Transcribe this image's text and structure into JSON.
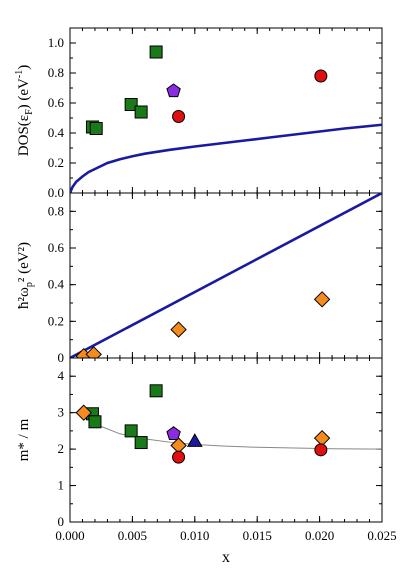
{
  "chart_data": [
    {
      "type": "scatter",
      "panel": "top",
      "ylabel_main": "DOS(ε",
      "ylabel_sub": "F",
      "ylabel_tail": ")",
      "ylabel_unit": "(eV",
      "ylabel_unit_sup": "-1",
      "ylabel_unit_tail": ")",
      "xlim": [
        0,
        0.025
      ],
      "ylim": [
        0,
        1.1
      ],
      "yticks": [
        "0.0",
        "0.2",
        "0.4",
        "0.6",
        "0.8",
        "1.0"
      ],
      "line": {
        "color": "#1a1aa0",
        "points": [
          [
            0,
            0
          ],
          [
            0.0002,
            0.04
          ],
          [
            0.0005,
            0.075
          ],
          [
            0.001,
            0.11
          ],
          [
            0.0015,
            0.14
          ],
          [
            0.002,
            0.16
          ],
          [
            0.003,
            0.2
          ],
          [
            0.004,
            0.225
          ],
          [
            0.005,
            0.245
          ],
          [
            0.006,
            0.262
          ],
          [
            0.008,
            0.288
          ],
          [
            0.01,
            0.31
          ],
          [
            0.012,
            0.33
          ],
          [
            0.014,
            0.35
          ],
          [
            0.016,
            0.37
          ],
          [
            0.018,
            0.39
          ],
          [
            0.02,
            0.41
          ],
          [
            0.022,
            0.43
          ],
          [
            0.025,
            0.455
          ]
        ]
      },
      "series": [
        {
          "marker": "square",
          "color": "#1a7a1a",
          "x": [
            0.0018,
            0.0021,
            0.0049,
            0.0057,
            0.0069
          ],
          "y": [
            0.44,
            0.43,
            0.59,
            0.54,
            0.94
          ]
        },
        {
          "marker": "pentagon",
          "color": "#8a2be2",
          "x": [
            0.0083
          ],
          "y": [
            0.68
          ]
        },
        {
          "marker": "circle",
          "color": "#e01010",
          "x": [
            0.0087,
            0.0201
          ],
          "y": [
            0.51,
            0.78
          ]
        }
      ]
    },
    {
      "type": "scatter",
      "panel": "middle",
      "ylabel": "ħ²ω",
      "ylabel_sub": "p",
      "ylabel_tail": "² (eV²)",
      "xlim": [
        0,
        0.025
      ],
      "ylim": [
        0,
        0.9
      ],
      "yticks": [
        "0",
        "0.2",
        "0.4",
        "0.6",
        "0.8"
      ],
      "line": {
        "color": "#1a1aa0",
        "points": [
          [
            0.0,
            0.0
          ],
          [
            0.025,
            0.9
          ]
        ]
      },
      "series": [
        {
          "marker": "diamond",
          "color": "#f58a1f",
          "x": [
            0.0011,
            0.0019,
            0.0087,
            0.0202
          ],
          "y": [
            0.01,
            0.02,
            0.155,
            0.32
          ]
        }
      ]
    },
    {
      "type": "scatter",
      "panel": "bottom",
      "ylabel": "m* / m",
      "xlabel": "x",
      "xlim": [
        0,
        0.025
      ],
      "ylim": [
        0,
        4.5
      ],
      "yticks": [
        "0",
        "1",
        "2",
        "3",
        "4"
      ],
      "xticks": [
        "0.000",
        "0.005",
        "0.010",
        "0.015",
        "0.020",
        "0.025"
      ],
      "line": {
        "color": "#888888",
        "points": [
          [
            0.0008,
            3.05
          ],
          [
            0.0015,
            2.85
          ],
          [
            0.0025,
            2.62
          ],
          [
            0.004,
            2.42
          ],
          [
            0.006,
            2.28
          ],
          [
            0.008,
            2.19
          ],
          [
            0.01,
            2.13
          ],
          [
            0.012,
            2.09
          ],
          [
            0.015,
            2.05
          ],
          [
            0.018,
            2.03
          ],
          [
            0.021,
            2.01
          ],
          [
            0.025,
            2.0
          ]
        ]
      },
      "series": [
        {
          "marker": "square",
          "color": "#1a7a1a",
          "x": [
            0.0018,
            0.002,
            0.0049,
            0.0057,
            0.0069
          ],
          "y": [
            2.97,
            2.75,
            2.5,
            2.18,
            3.6
          ]
        },
        {
          "marker": "diamond",
          "color": "#f58a1f",
          "x": [
            0.0011,
            0.0087,
            0.0202
          ],
          "y": [
            3.0,
            2.1,
            2.3
          ]
        },
        {
          "marker": "pentagon",
          "color": "#8a2be2",
          "x": [
            0.0083
          ],
          "y": [
            2.42
          ]
        },
        {
          "marker": "triangle",
          "color": "#1a1aa0",
          "x": [
            0.01
          ],
          "y": [
            2.22
          ]
        },
        {
          "marker": "circle",
          "color": "#e01010",
          "x": [
            0.0087,
            0.0201
          ],
          "y": [
            1.78,
            1.98
          ]
        }
      ]
    }
  ]
}
